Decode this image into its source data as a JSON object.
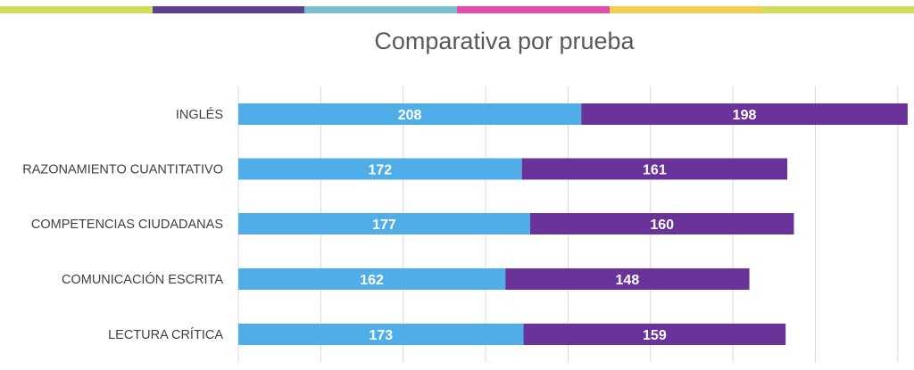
{
  "stripe_colors": [
    "#d0dd57",
    "#5e3f95",
    "#7bbfd1",
    "#e84aa8",
    "#f1cf4f",
    "#d0dd57"
  ],
  "chart_data": {
    "type": "bar",
    "orientation": "horizontal",
    "stacked": true,
    "title": "Comparativa por prueba",
    "categories": [
      "INGLÉS",
      "RAZONAMIENTO CUANTITATIVO",
      "COMPETENCIAS CIUDADANAS",
      "COMUNICACIÓN ESCRITA",
      "LECTURA CRÍTICA"
    ],
    "series": [
      {
        "values": [
          208,
          172,
          177,
          162,
          173
        ],
        "color": "#4faee8"
      },
      {
        "values": [
          198,
          161,
          160,
          148,
          159
        ],
        "color": "#6a3399"
      }
    ],
    "xlim": [
      0,
      400
    ],
    "grid_step": 50,
    "grid": true,
    "data_labels": true,
    "legend": "none"
  }
}
